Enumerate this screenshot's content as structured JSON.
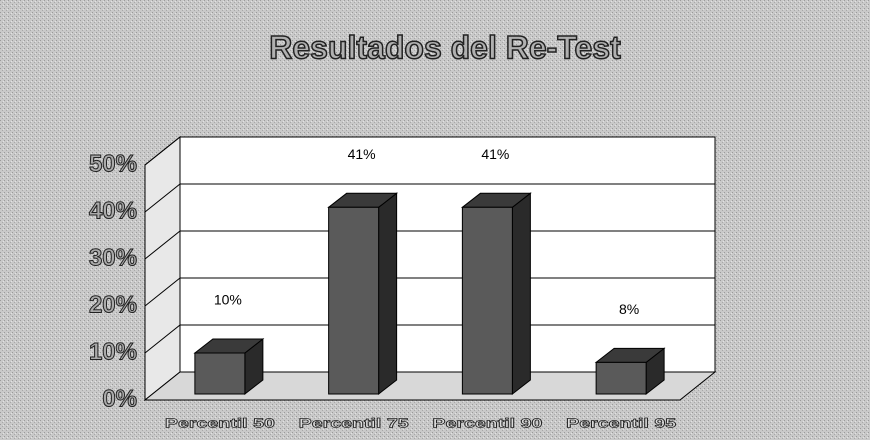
{
  "chart_data": {
    "type": "bar3d",
    "title": "Resultados del Re-Test",
    "categories": [
      "Percentil 50",
      "Percentil 75",
      "Percentil 90",
      "Percentil 95"
    ],
    "values": [
      10,
      41,
      41,
      8
    ],
    "value_labels": [
      "10%",
      "41%",
      "41%",
      "8%"
    ],
    "color": "#5a5a5a",
    "ylim": [
      0,
      50
    ],
    "yticks": [
      {
        "value": 0,
        "label": "0%"
      },
      {
        "value": 10,
        "label": "10%"
      },
      {
        "value": 20,
        "label": "20%"
      },
      {
        "value": 30,
        "label": "30%"
      },
      {
        "value": 40,
        "label": "40%"
      },
      {
        "value": 50,
        "label": "50%"
      }
    ],
    "grid": true
  }
}
